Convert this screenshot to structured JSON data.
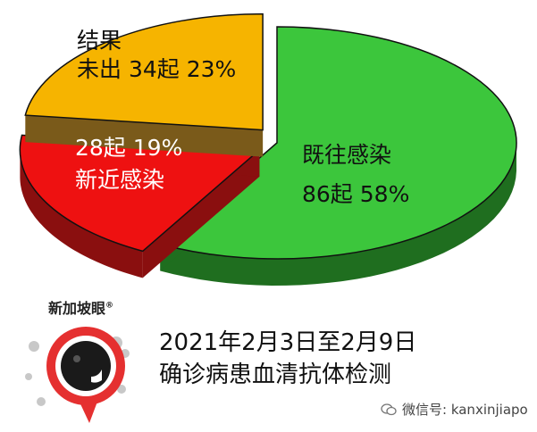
{
  "chart_data": {
    "type": "pie",
    "style": "3d-exploded",
    "slices": [
      {
        "line1": "既往感染",
        "line2": "86起 58%",
        "count": 86,
        "percent": 58,
        "top_color": "#3cc63c",
        "side_color": "#1f6e1f"
      },
      {
        "line1": "28起 19%",
        "line2": "新近感染",
        "count": 28,
        "percent": 19,
        "top_color": "#ee1111",
        "side_color": "#8a0f0f"
      },
      {
        "line1": "结果",
        "line2": "未出 34起 23%",
        "count": 34,
        "percent": 23,
        "top_color": "#f6b400",
        "side_color": "#7a5a1a"
      }
    ]
  },
  "caption": {
    "line1": "2021年2月3日至2月9日",
    "line2": "确诊病患血清抗体检测"
  },
  "logo": {
    "text": "新加坡眼",
    "mark": "®",
    "icon": "eye-lens-logo-icon"
  },
  "watermark": {
    "text": "微信号: kanxinjiapo",
    "icon": "wechat-icon"
  }
}
